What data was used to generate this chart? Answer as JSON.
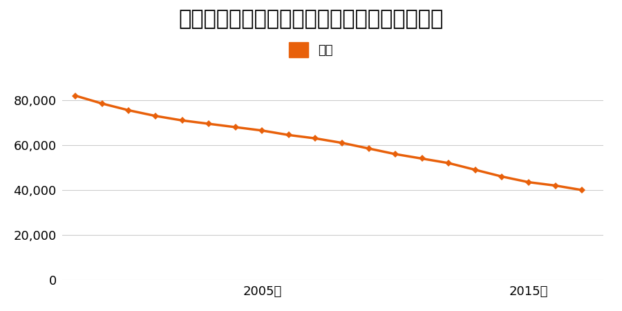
{
  "title": "宮崎県日南市中央通１丁目６番１０の地価推移",
  "legend_label": "価格",
  "years": [
    1998,
    1999,
    2000,
    2001,
    2002,
    2003,
    2004,
    2005,
    2006,
    2007,
    2008,
    2009,
    2010,
    2011,
    2012,
    2013,
    2014,
    2015,
    2016,
    2017
  ],
  "values": [
    82000,
    78500,
    75500,
    73000,
    71000,
    69500,
    68000,
    66500,
    64500,
    63000,
    61000,
    58500,
    56000,
    54000,
    52000,
    49000,
    46000,
    43500,
    42000,
    40000
  ],
  "line_color": "#e8600a",
  "marker": "D",
  "marker_size": 5,
  "line_width": 2.5,
  "ylim": [
    0,
    90000
  ],
  "yticks": [
    0,
    20000,
    40000,
    60000,
    80000
  ],
  "xtick_labels": [
    "2005年",
    "2015年"
  ],
  "xtick_positions": [
    2005,
    2015
  ],
  "background_color": "#ffffff",
  "title_fontsize": 22,
  "legend_fontsize": 13,
  "tick_fontsize": 13,
  "grid_color": "#cccccc",
  "xmin": 1997.5,
  "xmax": 2017.8
}
